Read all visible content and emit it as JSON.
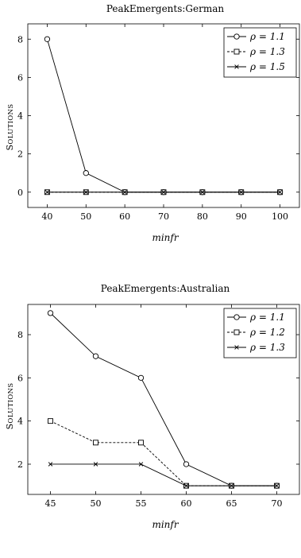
{
  "chart_data": [
    {
      "type": "line",
      "title": "PeakEmergents:German",
      "xlabel": "minfr",
      "ylabel": "Solutions",
      "x": [
        40,
        50,
        60,
        70,
        80,
        90,
        100
      ],
      "xlim": [
        35,
        105
      ],
      "ylim": [
        -0.8,
        8.8
      ],
      "yticks": [
        0,
        2,
        4,
        6,
        8
      ],
      "legend_position": "top-right",
      "series": [
        {
          "name": "ρ = 1.1",
          "marker": "circle",
          "dash": "solid",
          "values": [
            8,
            1,
            0,
            0,
            0,
            0,
            0
          ]
        },
        {
          "name": "ρ = 1.3",
          "marker": "square",
          "dash": "dashed",
          "values": [
            0,
            0,
            0,
            0,
            0,
            0,
            0
          ]
        },
        {
          "name": "ρ = 1.5",
          "marker": "cross",
          "dash": "solid",
          "values": [
            0,
            0,
            0,
            0,
            0,
            0,
            0
          ]
        }
      ]
    },
    {
      "type": "line",
      "title": "PeakEmergents:Australian",
      "xlabel": "minfr",
      "ylabel": "Solutions",
      "x": [
        45,
        50,
        55,
        60,
        65,
        70
      ],
      "xlim": [
        42.5,
        72.5
      ],
      "ylim": [
        0.6,
        9.4
      ],
      "yticks": [
        2,
        4,
        6,
        8
      ],
      "legend_position": "top-right",
      "series": [
        {
          "name": "ρ = 1.1",
          "marker": "circle",
          "dash": "solid",
          "values": [
            9,
            7,
            6,
            2,
            1,
            1
          ]
        },
        {
          "name": "ρ = 1.2",
          "marker": "square",
          "dash": "dashed",
          "values": [
            4,
            3,
            3,
            1,
            1,
            1
          ]
        },
        {
          "name": "ρ = 1.3",
          "marker": "cross",
          "dash": "solid",
          "values": [
            2,
            2,
            2,
            1,
            1,
            1
          ]
        }
      ]
    }
  ]
}
